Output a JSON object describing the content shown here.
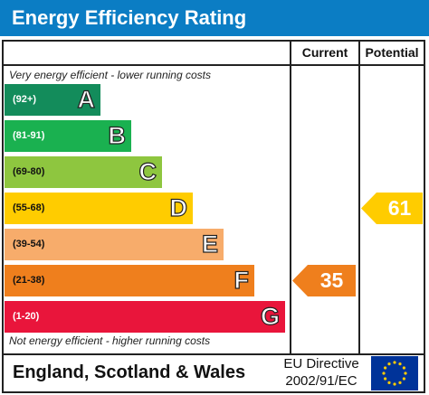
{
  "title": "Energy Efficiency Rating",
  "columns": {
    "current": "Current",
    "potential": "Potential"
  },
  "top_note": "Very energy efficient - lower running costs",
  "bottom_note": "Not energy efficient - higher running costs",
  "footer": {
    "country": "England, Scotland & Wales",
    "directive_line1": "EU Directive",
    "directive_line2": "2002/91/EC"
  },
  "colors": {
    "header": "#0b7dc4",
    "A": "#138c5b",
    "B": "#1ab150",
    "C": "#8ec63f",
    "D": "#ffcc00",
    "E": "#f7ac6b",
    "F": "#ef7f1d",
    "G": "#e9153b"
  },
  "chart_data": {
    "type": "bar",
    "categories": [
      "A",
      "B",
      "C",
      "D",
      "E",
      "F",
      "G"
    ],
    "ranges": [
      "(92+)",
      "(81-91)",
      "(69-80)",
      "(55-68)",
      "(39-54)",
      "(21-38)",
      "(1-20)"
    ],
    "current": {
      "value": 35,
      "band": "F"
    },
    "potential": {
      "value": 61,
      "band": "D"
    }
  }
}
